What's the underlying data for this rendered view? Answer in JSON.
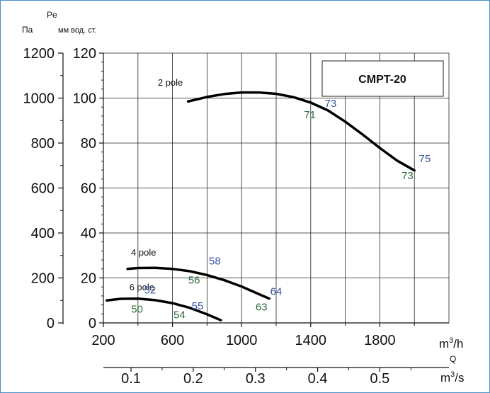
{
  "chart_data": {
    "type": "line",
    "title": "CMPT-20",
    "y_left_unit": "Па",
    "y_right_symbol": "Pe",
    "y_right_unit": "мм вод. ст.",
    "x_unit_top": "m³/h",
    "x_symbol": "Q",
    "x_unit_bottom": "m³/s",
    "xlim": [
      200,
      2200
    ],
    "ylim_pa": [
      0,
      1200
    ],
    "ylim_mm": [
      0,
      120
    ],
    "y_ticks_pa": [
      "1200",
      "1000",
      "800",
      "600",
      "400",
      "200",
      "0"
    ],
    "y_ticks_mm": [
      "120",
      "100",
      "80",
      "60",
      "40",
      "20",
      "0"
    ],
    "x_ticks": [
      "200",
      "600",
      "1000",
      "1400",
      "1800"
    ],
    "x2_ticks": [
      "0.1",
      "0.2",
      "0.3",
      "0.4",
      "0.5"
    ],
    "grid": true,
    "series": [
      {
        "name": "2 pole",
        "x": [
          690,
          800,
          900,
          1000,
          1100,
          1200,
          1300,
          1400,
          1500,
          1600,
          1700,
          1800,
          1900,
          2000
        ],
        "y": [
          985,
          1005,
          1018,
          1025,
          1025,
          1019,
          1004,
          980,
          945,
          895,
          838,
          778,
          722,
          678
        ]
      },
      {
        "name": "4 pole",
        "x": [
          340,
          400,
          500,
          600,
          700,
          800,
          900,
          1000,
          1100,
          1160
        ],
        "y": [
          240,
          244,
          245,
          240,
          230,
          213,
          190,
          162,
          128,
          108
        ]
      },
      {
        "name": "6 pole",
        "x": [
          220,
          300,
          400,
          500,
          600,
          700,
          800,
          880
        ],
        "y": [
          100,
          107,
          108,
          101,
          88,
          67,
          38,
          12
        ]
      }
    ],
    "annotations": [
      {
        "text": "73",
        "x": 1515,
        "y": 960,
        "color": "#3a55a0"
      },
      {
        "text": "71",
        "x": 1395,
        "y": 910,
        "color": "#2e6b3a"
      },
      {
        "text": "75",
        "x": 2060,
        "y": 715,
        "color": "#3a55a0"
      },
      {
        "text": "73",
        "x": 1960,
        "y": 640,
        "color": "#2e6b3a"
      },
      {
        "text": "58",
        "x": 845,
        "y": 260,
        "color": "#3a55a0"
      },
      {
        "text": "56",
        "x": 725,
        "y": 175,
        "color": "#2e6b3a"
      },
      {
        "text": "64",
        "x": 1200,
        "y": 125,
        "color": "#3a55a0"
      },
      {
        "text": "63",
        "x": 1115,
        "y": 55,
        "color": "#2e6b3a"
      },
      {
        "text": "52",
        "x": 470,
        "y": 130,
        "color": "#3a55a0"
      },
      {
        "text": "55",
        "x": 745,
        "y": 60,
        "color": "#3a55a0"
      },
      {
        "text": "50",
        "x": 395,
        "y": 45,
        "color": "#2e6b3a"
      },
      {
        "text": "54",
        "x": 640,
        "y": 20,
        "color": "#2e6b3a"
      }
    ],
    "curve_labels": [
      {
        "text": "2 pole",
        "x": 515,
        "y": 1055
      },
      {
        "text": "4 pole",
        "x": 360,
        "y": 300
      },
      {
        "text": "6 pole",
        "x": 350,
        "y": 145
      }
    ]
  }
}
